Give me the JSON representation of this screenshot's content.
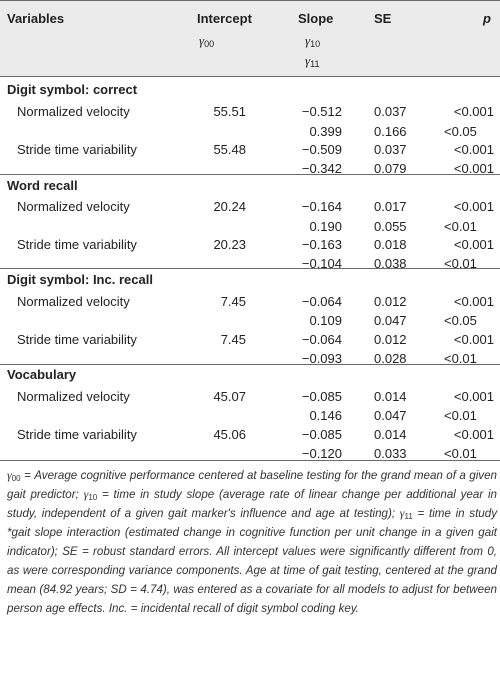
{
  "header": {
    "variables": "Variables",
    "intercept": "Intercept",
    "intercept_sym": "γ",
    "intercept_sub": "00",
    "slope": "Slope",
    "slope_sym1": "γ",
    "slope_sub1": "10",
    "slope_sym2": "γ",
    "slope_sub2": "11",
    "se": "SE",
    "p": "p"
  },
  "sections": [
    {
      "title": "Digit symbol: correct",
      "rows": [
        {
          "label": "Normalized velocity",
          "intercept": "55.51",
          "slope": [
            "−0.512",
            "0.399"
          ],
          "se": [
            "0.037",
            "0.166"
          ],
          "p": [
            "<0.001",
            "<0.05"
          ]
        },
        {
          "label": "Stride time variability",
          "intercept": "55.48",
          "slope": [
            "−0.509",
            "−0.342"
          ],
          "se": [
            "0.037",
            "0.079"
          ],
          "p": [
            "<0.001",
            "<0.001"
          ]
        }
      ]
    },
    {
      "title": "Word recall",
      "rows": [
        {
          "label": "Normalized velocity",
          "intercept": "20.24",
          "slope": [
            "−0.164",
            "0.190"
          ],
          "se": [
            "0.017",
            "0.055"
          ],
          "p": [
            "<0.001",
            "<0.01"
          ]
        },
        {
          "label": "Stride time variability",
          "intercept": "20.23",
          "slope": [
            "−0.163",
            "−0.104"
          ],
          "se": [
            "0.018",
            "0.038"
          ],
          "p": [
            "<0.001",
            "<0.01"
          ]
        }
      ]
    },
    {
      "title": "Digit symbol: Inc. recall",
      "rows": [
        {
          "label": "Normalized velocity",
          "intercept": "7.45",
          "slope": [
            "−0.064",
            "0.109"
          ],
          "se": [
            "0.012",
            "0.047"
          ],
          "p": [
            "<0.001",
            "<0.05"
          ]
        },
        {
          "label": "Stride time variability",
          "intercept": "7.45",
          "slope": [
            "−0.064",
            "−0.093"
          ],
          "se": [
            "0.012",
            "0.028"
          ],
          "p": [
            "<0.001",
            "<0.01"
          ]
        }
      ]
    },
    {
      "title": "Vocabulary",
      "rows": [
        {
          "label": "Normalized velocity",
          "intercept": "45.07",
          "slope": [
            "−0.085",
            "0.146"
          ],
          "se": [
            "0.014",
            "0.047"
          ],
          "p": [
            "<0.001",
            "<0.01"
          ]
        },
        {
          "label": "Stride time variability",
          "intercept": "45.06",
          "slope": [
            "−0.085",
            "−0.120"
          ],
          "se": [
            "0.014",
            "0.033"
          ],
          "p": [
            "<0.001",
            "<0.01"
          ]
        }
      ]
    }
  ],
  "footnote": {
    "g00_sym": "γ",
    "g00_sub": "00",
    "g00_text": " = Average cognitive performance centered at baseline testing for the grand mean of a given gait predictor; ",
    "g10_sym": "γ",
    "g10_sub": "10",
    "g10_text": " = time in study slope (average rate of linear change per additional year in study, independent of a given gait marker's influence and age at testing); ",
    "g11_sym": "γ",
    "g11_sub": "11",
    "g11_text": " = time in study *gait slope interaction (estimated change in cognitive function per unit change in a given gait indicator); SE = robust standard errors. All intercept values were significantly different from 0, as were corresponding variance components. Age at time of gait testing, centered at the grand mean (84.92 years; SD = 4.74), was entered as a covariate for all models to adjust for between person age effects. Inc. = incidental recall of digit symbol coding key."
  }
}
